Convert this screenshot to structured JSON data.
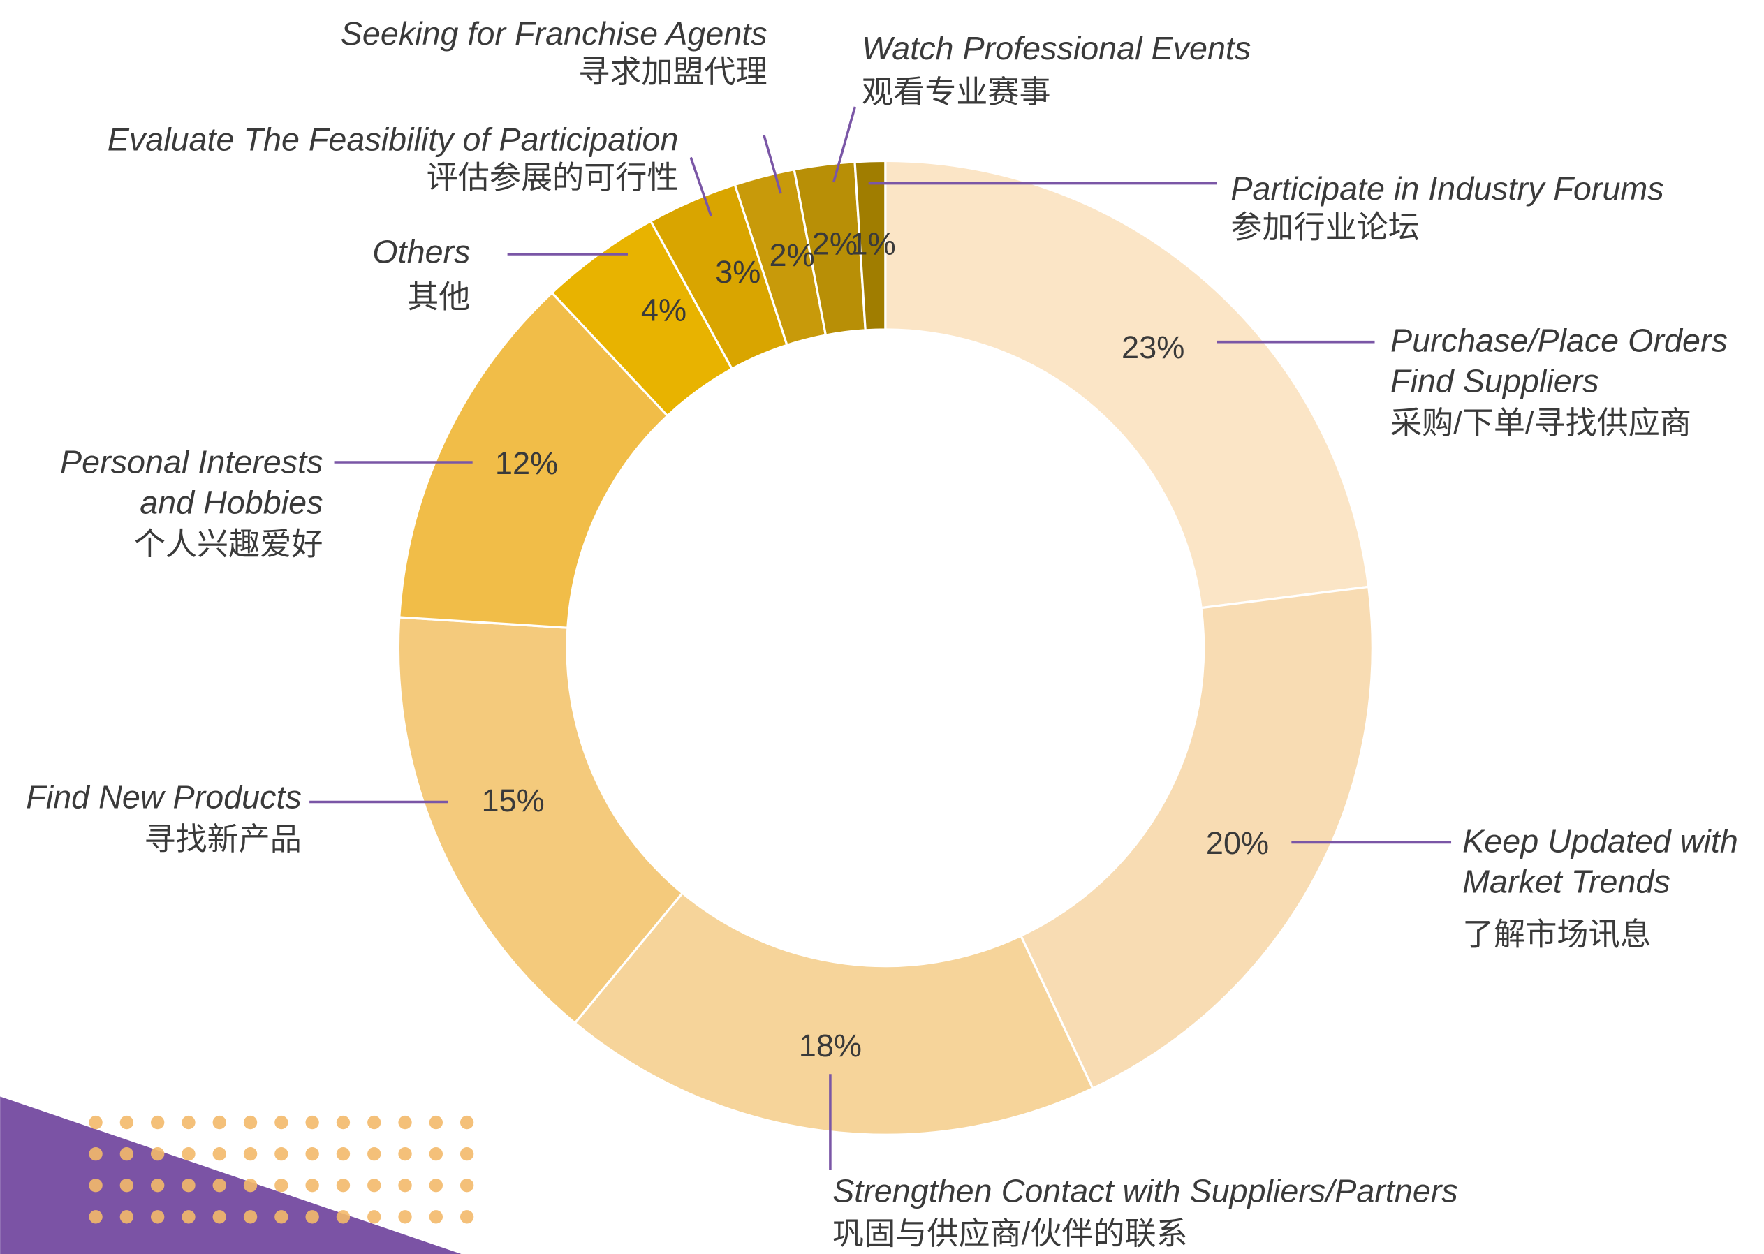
{
  "chart_data": {
    "type": "donut",
    "categories": [
      [
        "Purchase/Place Orders",
        "Find Suppliers",
        "采购/下单/寻找供应商"
      ],
      [
        "Keep Updated with",
        "Market Trends",
        "了解市场讯息"
      ],
      [
        "Strengthen Contact with Suppliers/Partners",
        "巩固与供应商/伙伴的联系"
      ],
      [
        "Find New Products",
        "寻找新产品"
      ],
      [
        "Personal Interests",
        "and Hobbies",
        "个人兴趣爱好"
      ],
      [
        "Others",
        "其他"
      ],
      [
        "Evaluate The Feasibility of Participation",
        "评估参展的可行性"
      ],
      [
        "Seeking for Franchise Agents",
        "寻求加盟代理"
      ],
      [
        "Watch Professional Events",
        "观看专业赛事"
      ],
      [
        "Participate in Industry Forums",
        "参加行业论坛"
      ]
    ],
    "values": [
      23,
      20,
      18,
      15,
      12,
      4,
      3,
      2,
      2,
      1
    ],
    "value_labels": [
      "23%",
      "20%",
      "18%",
      "15%",
      "12%",
      "4%",
      "3%",
      "2%",
      "2%",
      "1%"
    ],
    "colors": [
      "#fbe5c6",
      "#f8dcb3",
      "#f6d49a",
      "#f4ca7c",
      "#f1bd48",
      "#e8b300",
      "#d9a500",
      "#c89a0a",
      "#b88f06",
      "#a07d00"
    ]
  }
}
